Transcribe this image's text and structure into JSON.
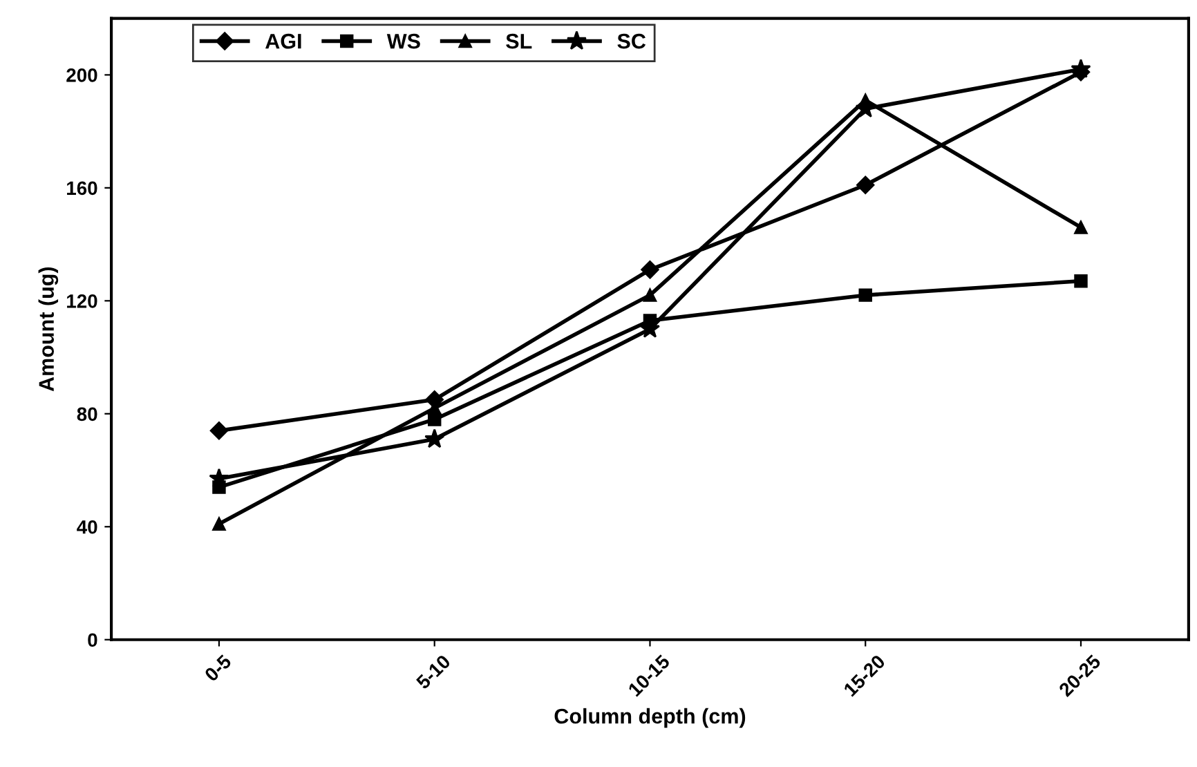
{
  "chart_data": {
    "type": "line",
    "xlabel": "Column depth (cm)",
    "ylabel": "Amount (ug)",
    "categories": [
      "0-5",
      "5-10",
      "10-15",
      "15-20",
      "20-25"
    ],
    "series": [
      {
        "name": "AGI",
        "color": "#000000",
        "marker": "diamond",
        "values": [
          74,
          85,
          131,
          161,
          201
        ]
      },
      {
        "name": "WS",
        "color": "#000000",
        "marker": "square",
        "values": [
          54,
          78,
          113,
          122,
          127
        ]
      },
      {
        "name": "SL",
        "color": "#000000",
        "marker": "triangle",
        "values": [
          41,
          82,
          122,
          191,
          146
        ]
      },
      {
        "name": "SC",
        "color": "#000000",
        "marker": "star",
        "values": [
          57,
          71,
          110,
          188,
          202
        ]
      }
    ],
    "ylim": [
      0,
      220
    ],
    "yticks": [
      0,
      40,
      80,
      120,
      160,
      200
    ],
    "grid": false,
    "legend": "top left"
  }
}
